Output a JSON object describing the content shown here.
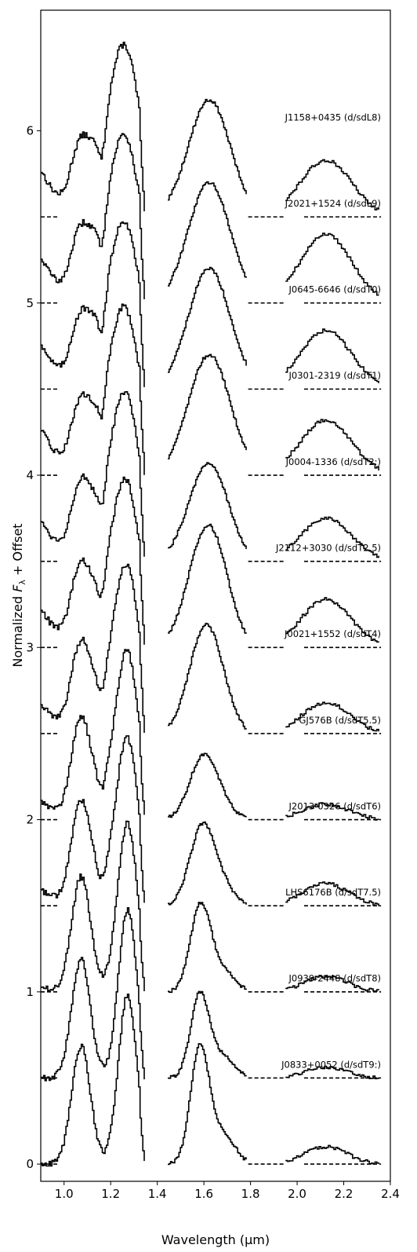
{
  "chart_data": {
    "type": "line",
    "xlabel": "Wavelength (μm)",
    "ylabel": "Normalized F_λ + Offset",
    "xlim": [
      0.9,
      2.4
    ],
    "ylim": [
      -0.1,
      6.7
    ],
    "x_ticks": [
      "1.0",
      "1.2",
      "1.4",
      "1.6",
      "1.8",
      "2.0",
      "2.2",
      "2.4"
    ],
    "y_ticks": [
      "0",
      "1",
      "2",
      "3",
      "4",
      "5",
      "6"
    ],
    "grid": false,
    "legend": "none",
    "series": [
      {
        "name": "J1158+0435 (d/sdL8)",
        "offset": 5.5,
        "profile": "L8",
        "pj": 1.0,
        "ph": 0.68,
        "pk": 0.33
      },
      {
        "name": "J2021+1524 (d/sdL9)",
        "offset": 5.0,
        "profile": "L9",
        "pj": 0.98,
        "ph": 0.7,
        "pk": 0.4
      },
      {
        "name": "J0645-6646 (d/sdT0)",
        "offset": 4.5,
        "profile": "T0",
        "pj": 0.98,
        "ph": 0.7,
        "pk": 0.34
      },
      {
        "name": "J0301-2319 (d/sdT1)",
        "offset": 4.0,
        "profile": "T1",
        "pj": 0.98,
        "ph": 0.7,
        "pk": 0.32
      },
      {
        "name": "J0004-1336 (d/sdT2:)",
        "offset": 3.5,
        "profile": "T2",
        "pj": 0.98,
        "ph": 0.57,
        "pk": 0.25
      },
      {
        "name": "J2112+3030 (d/sdT2.5)",
        "offset": 3.0,
        "profile": "T2.5",
        "pj": 0.98,
        "ph": 0.71,
        "pk": 0.28
      },
      {
        "name": "J0021+1552 (d/sdT4)",
        "offset": 2.5,
        "profile": "T4",
        "pj": 0.98,
        "ph": 0.63,
        "pk": 0.18
      },
      {
        "name": "GJ576B (d/sdT5.5)",
        "offset": 2.0,
        "profile": "T5.5",
        "pj": 0.98,
        "ph": 0.38,
        "pk": 0.09
      },
      {
        "name": "J2013-0326 (d/sdT6)",
        "offset": 1.5,
        "profile": "T6",
        "pj": 0.98,
        "ph": 0.48,
        "pk": 0.13
      },
      {
        "name": "LHS6176B (d/sdT7.5)",
        "offset": 1.0,
        "profile": "T7.5",
        "pj": 0.98,
        "ph": 0.52,
        "pk": 0.09
      },
      {
        "name": "J0939-2448 (d/sdT8)",
        "offset": 0.5,
        "profile": "T8",
        "pj": 0.98,
        "ph": 0.5,
        "pk": 0.06
      },
      {
        "name": "J0833+0052 (d/sdT9:)",
        "offset": 0.0,
        "profile": "T9",
        "pj": 0.98,
        "ph": 0.7,
        "pk": 0.1
      }
    ]
  }
}
